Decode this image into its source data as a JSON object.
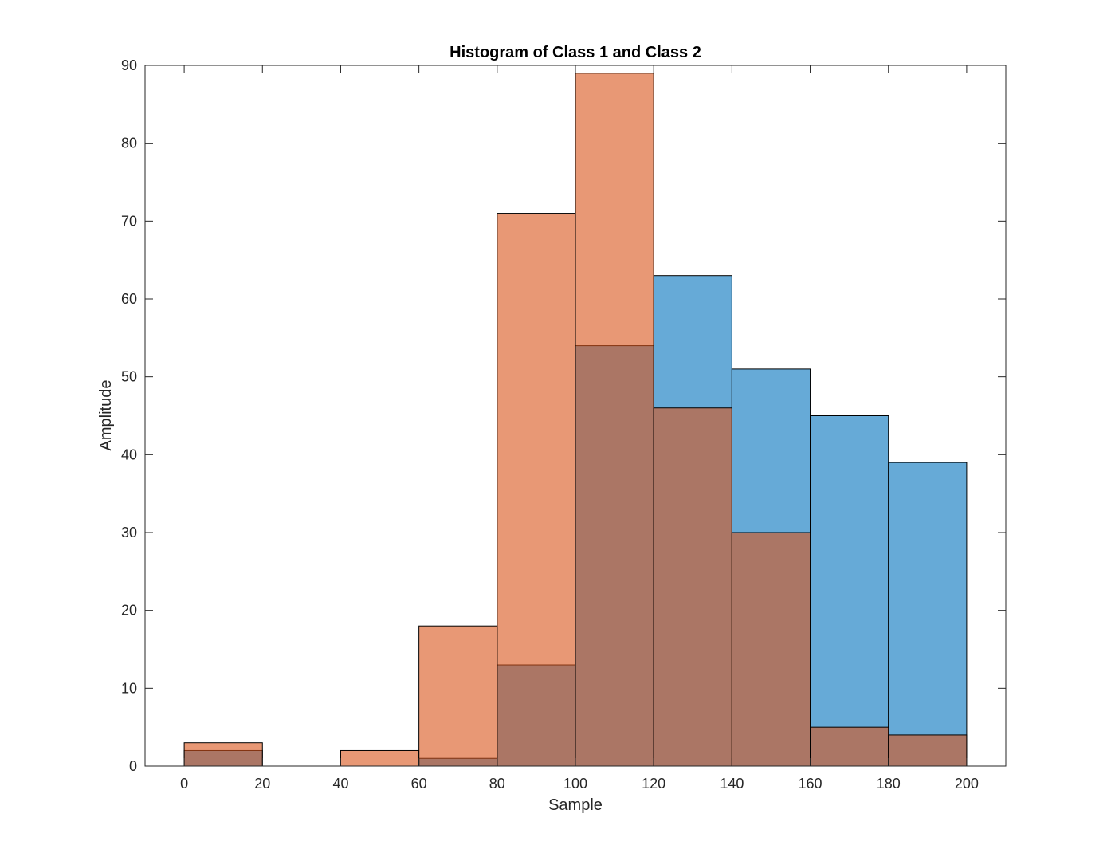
{
  "chart_data": {
    "type": "bar",
    "title": "Histogram of Class 1 and Class 2",
    "xlabel": "Sample",
    "ylabel": "Amplitude",
    "xlim": [
      -10,
      210
    ],
    "ylim": [
      0,
      90
    ],
    "xticks": [
      0,
      20,
      40,
      60,
      80,
      100,
      120,
      140,
      160,
      180,
      200
    ],
    "yticks": [
      0,
      10,
      20,
      30,
      40,
      50,
      60,
      70,
      80,
      90
    ],
    "bin_edges": [
      0,
      20,
      40,
      60,
      80,
      100,
      120,
      140,
      160,
      180,
      200
    ],
    "grid": false,
    "series": [
      {
        "color": "#0072BD",
        "face_alpha": 0.6,
        "values": [
          2,
          0,
          0,
          1,
          13,
          54,
          63,
          51,
          45,
          39
        ]
      },
      {
        "color": "#D95319",
        "face_alpha": 0.6,
        "values": [
          3,
          0,
          2,
          18,
          71,
          89,
          46,
          30,
          5,
          4
        ]
      }
    ]
  }
}
